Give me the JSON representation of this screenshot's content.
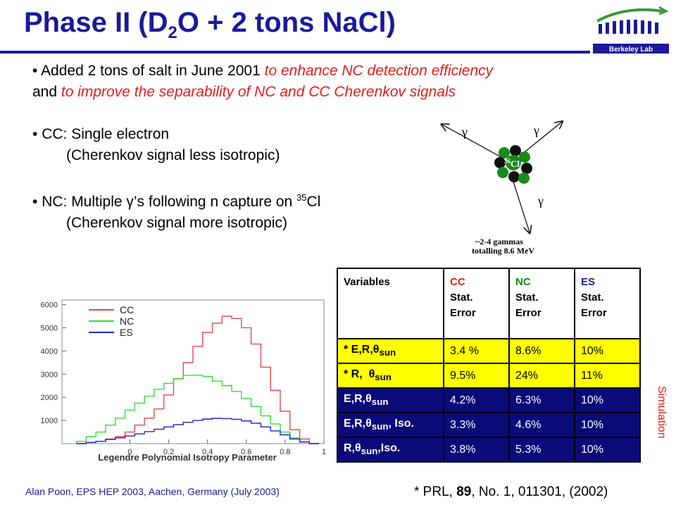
{
  "title": {
    "pre": "Phase II (D",
    "sub": "2",
    "post": "O + 2 tons NaCl)"
  },
  "logo": {
    "text": "Berkeley Lab"
  },
  "bullets": {
    "b1_plain1": "Added 2 tons of salt in June 2001 ",
    "b1_red1": "to enhance NC detection efficiency",
    "b1_plain2": "and ",
    "b1_red2": "to improve the separability of NC and CC Cherenkov signals",
    "b2_line1": "CC:  Single electron",
    "b2_line2": "(Cherenkov signal less isotropic)",
    "b3_pre": "NC:  Multiple ",
    "b3_gamma": "γ",
    "b3_mid": "’s following n capture on ",
    "b3_sup": "35",
    "b3_post": "Cl",
    "b3_line2": "(Cherenkov signal more isotropic)"
  },
  "diagram": {
    "gamma": "γ",
    "nucleus_sup": "36",
    "nucleus_el": "Cl",
    "caption1": "~2-4 gammas",
    "caption2": "totalling 8.6 MeV"
  },
  "chart_data": {
    "type": "line",
    "xlabel": "Legendre Polynomial Isotropy Parameter",
    "ylabel": "",
    "xlim": [
      -0.35,
      1.0
    ],
    "ylim": [
      0,
      6200
    ],
    "xticks": [
      "0",
      "0.2",
      "0.4",
      "0.6",
      "0.8",
      "1"
    ],
    "yticks": [
      "1000",
      "2000",
      "3000",
      "4000",
      "5000",
      "6000"
    ],
    "legend": [
      "CC",
      "NC",
      "ES"
    ],
    "legend_position": "top-left",
    "x": [
      -0.25,
      -0.2,
      -0.15,
      -0.1,
      -0.05,
      0,
      0.05,
      0.1,
      0.15,
      0.2,
      0.25,
      0.3,
      0.35,
      0.4,
      0.45,
      0.5,
      0.55,
      0.6,
      0.65,
      0.7,
      0.75,
      0.8,
      0.85,
      0.9,
      0.95
    ],
    "series": [
      {
        "name": "CC",
        "color": "#e8464f",
        "values": [
          0,
          50,
          100,
          200,
          300,
          500,
          800,
          1100,
          1500,
          2100,
          2800,
          3500,
          4200,
          4800,
          5200,
          5500,
          5400,
          5000,
          4300,
          3300,
          2300,
          1400,
          600,
          200,
          0
        ]
      },
      {
        "name": "NC",
        "color": "#33dd33",
        "values": [
          100,
          300,
          500,
          800,
          1100,
          1450,
          1750,
          2050,
          2350,
          2600,
          2800,
          2950,
          2950,
          2900,
          2700,
          2500,
          2250,
          1950,
          1600,
          1200,
          850,
          500,
          250,
          80,
          0
        ]
      },
      {
        "name": "ES",
        "color": "#2222cc",
        "values": [
          0,
          50,
          100,
          180,
          250,
          330,
          420,
          520,
          620,
          720,
          820,
          920,
          1000,
          1060,
          1090,
          1080,
          1050,
          980,
          880,
          720,
          550,
          380,
          200,
          70,
          0
        ]
      }
    ]
  },
  "table": {
    "header": {
      "c1": "Variables",
      "c2": [
        "CC",
        "Stat.",
        "Error"
      ],
      "c3": [
        "NC",
        "Stat.",
        "Error"
      ],
      "c4": [
        "ES",
        "Stat.",
        "Error"
      ]
    },
    "rows": [
      {
        "label": "* E,R,",
        "theta": "θ",
        "sub": "sun",
        "suffix": "",
        "cc": "3.4 %",
        "nc": "8.6%",
        "es": "10%"
      },
      {
        "label": "* R,  ",
        "theta": "θ",
        "sub": "sun",
        "suffix": "",
        "cc": "9.5%",
        "nc": "24%",
        "es": "11%"
      },
      {
        "label": "E,R,",
        "theta": "θ",
        "sub": "sun",
        "suffix": "",
        "cc": "4.2%",
        "nc": "6.3%",
        "es": "10%"
      },
      {
        "label": "E,R,",
        "theta": "θ",
        "sub": "sun",
        "suffix": ", Iso.",
        "cc": "3.3%",
        "nc": "4.6%",
        "es": "10%"
      },
      {
        "label": "R,",
        "theta": "θ",
        "sub": "sun",
        "suffix": ",Iso.",
        "cc": "3.8%",
        "nc": "5.3%",
        "es": "10%"
      }
    ]
  },
  "side_label": "Simulation",
  "footer": {
    "credit": "Alan Poon, EPS HEP 2003, Aachen, Germany (July 2003)",
    "ref_pre": "* PRL, ",
    "ref_bold": "89",
    "ref_post": ", No. 1, 011301, (2002)"
  },
  "colors": {
    "title": "#1a1a99",
    "red": "#e31b1b",
    "yellow": "#ffff00",
    "navy": "#0a0a78"
  }
}
